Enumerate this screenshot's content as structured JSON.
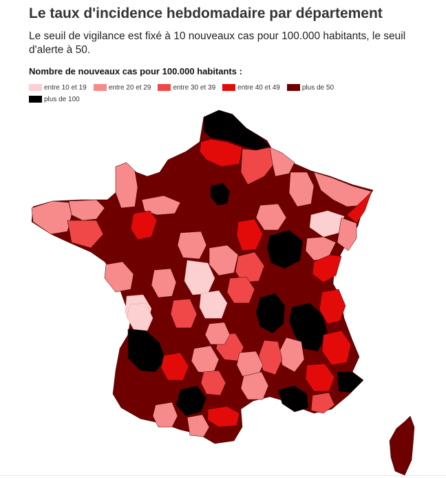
{
  "header": {
    "title": "Le taux d'incidence hebdomadaire par département",
    "subtitle": "Le seuil de vigilance est fixé à 10 nouveaux cas pour 100.000 habitants, le seuil d'alerte à 50."
  },
  "legend": {
    "title": "Nombre de nouveaux cas pour 100.000 habitants :",
    "items": [
      {
        "label": "entre 10 et 19",
        "color": "#fcd0d0"
      },
      {
        "label": "entre 20 et 29",
        "color": "#f78a8a"
      },
      {
        "label": "entre 30 et 39",
        "color": "#f04848"
      },
      {
        "label": "entre 40 et 49",
        "color": "#e30a0a"
      },
      {
        "label": "plus de 50",
        "color": "#6e0000"
      },
      {
        "label": "plus de 100",
        "color": "#000000"
      }
    ]
  },
  "map": {
    "type": "choropleth",
    "region": "France (départements)",
    "dominant_class": "plus de 50"
  }
}
